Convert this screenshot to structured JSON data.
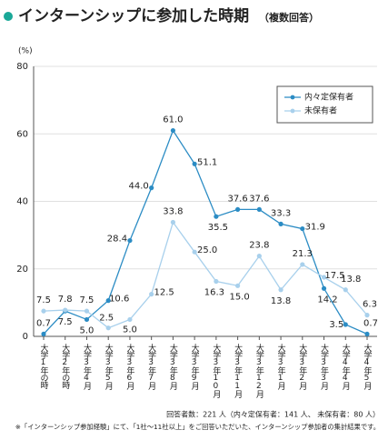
{
  "chart_data": {
    "type": "line",
    "title": "インターンシップに参加した時期",
    "subtitle": "（複数回答）",
    "y_unit": "(%)",
    "categories": [
      "大学1年の時",
      "大学2年の時",
      "大学3年4月",
      "大学3年5月",
      "大学3年6月",
      "大学3年7月",
      "大学3年8月",
      "大学3年9月",
      "大学3年10月",
      "大学3年11月",
      "大学3年12月",
      "大学3年1月",
      "大学3年2月",
      "大学3年3月",
      "大学4年4月",
      "大学4年5月"
    ],
    "series": [
      {
        "name": "内々定保有者",
        "color": "#2b8cc4",
        "values": [
          0.7,
          7.5,
          5.0,
          10.6,
          28.4,
          44.0,
          61.0,
          51.1,
          35.5,
          37.6,
          37.6,
          33.3,
          31.9,
          14.2,
          3.5,
          0.7
        ],
        "value_labels": [
          "0.7",
          "7.5",
          "5.0",
          "10.6",
          "28.4",
          "44.0",
          "61.0",
          "51.1",
          "35.5",
          "37.6",
          "37.6",
          "33.3",
          "31.9",
          "14.2",
          "3.5",
          "0.7"
        ]
      },
      {
        "name": "未保有者",
        "color": "#a8d0ec",
        "values": [
          7.5,
          7.8,
          7.5,
          2.5,
          5.0,
          12.5,
          33.8,
          25.0,
          16.3,
          15.0,
          23.8,
          13.8,
          21.3,
          17.5,
          13.8,
          6.3
        ],
        "value_labels": [
          "7.5",
          "7.8",
          "7.5",
          "2.5",
          "5.0",
          "12.5",
          "33.8",
          "25.0",
          "16.3",
          "15.0",
          "23.8",
          "13.8",
          "21.3",
          "17.5",
          "13.8",
          "6.3"
        ]
      }
    ],
    "ylim": [
      0,
      80
    ],
    "yticks": [
      0,
      20,
      40,
      60,
      80
    ],
    "grid": true,
    "legend": "upper right",
    "notes": [
      "回答者数：221 人（内々定保有者：141 人、 未保有者：80 人）",
      "※「インターンシップ参加経験」にて、「1社～11社以上」をご回答いただいた、インターンシップ参加者の集計結果です。"
    ]
  }
}
